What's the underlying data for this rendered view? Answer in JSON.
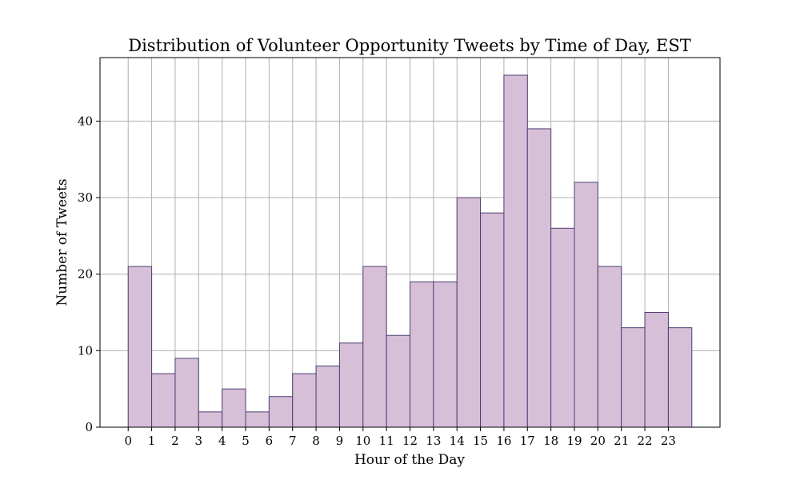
{
  "chart_data": {
    "type": "bar",
    "title": "Distribution of Volunteer Opportunity Tweets by Time of Day, EST",
    "xlabel": "Hour of the Day",
    "ylabel": "Number of Tweets",
    "categories": [
      "0",
      "1",
      "2",
      "3",
      "4",
      "5",
      "6",
      "7",
      "8",
      "9",
      "10",
      "11",
      "12",
      "13",
      "14",
      "15",
      "16",
      "17",
      "18",
      "19",
      "20",
      "21",
      "22",
      "23"
    ],
    "values": [
      21,
      7,
      9,
      2,
      5,
      2,
      4,
      7,
      8,
      11,
      21,
      12,
      19,
      19,
      30,
      28,
      46,
      39,
      26,
      32,
      21,
      13,
      15,
      13
    ],
    "xlim": [
      -1.2,
      25.2
    ],
    "ylim": [
      0,
      48.3
    ],
    "yticks": [
      0,
      10,
      20,
      30,
      40
    ],
    "grid": true,
    "bar_fill": "#d8bfd8",
    "bar_edge": "#4b3f72",
    "grid_color": "#b0b0b0"
  }
}
